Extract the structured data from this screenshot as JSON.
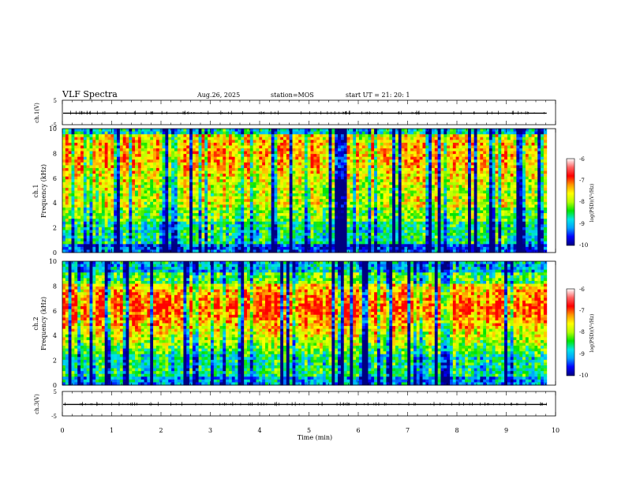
{
  "header": {
    "title": "VLF Spectra",
    "date": "Aug.26, 2025",
    "station": "station=MOS",
    "start_ut": "start  UT  =   21: 20: 1"
  },
  "colors": {
    "spectrum": [
      "#000080",
      "#0000ff",
      "#0096ff",
      "#00e6e6",
      "#00e600",
      "#b4ff00",
      "#ffff00",
      "#ff9600",
      "#ff0000"
    ],
    "colorbar": [
      "#000080",
      "#0000ff",
      "#00a0ff",
      "#00e6e6",
      "#00e600",
      "#b4ff00",
      "#ffff00",
      "#ff9600",
      "#ff0000",
      "#ff6464",
      "#ffffff"
    ],
    "line": "#000000"
  },
  "chart_data": [
    {
      "type": "line",
      "id": "ch1_waveform",
      "ylabel": "ch.1(V)",
      "ylim": [
        -5,
        5
      ],
      "yticks": [
        "5",
        "-5"
      ],
      "xlim": [
        0,
        10
      ],
      "baseline": -0.3
    },
    {
      "type": "heatmap",
      "id": "ch1_spectrogram",
      "ylabel_channel": "ch.1",
      "ylabel": "Frequency (kHz)",
      "ylim": [
        0,
        10
      ],
      "yticks": [
        "0",
        "2",
        "4",
        "6",
        "8",
        "10"
      ],
      "xlim": [
        0,
        10
      ],
      "data_end_min": 9.82,
      "colorbar": {
        "label": "log(PSD)(V²/Hz)",
        "ticks": [
          "-6",
          "-7",
          "-8",
          "-9",
          "-10"
        ],
        "range": [
          -10,
          -6
        ]
      }
    },
    {
      "type": "heatmap",
      "id": "ch2_spectrogram",
      "ylabel_channel": "ch.2",
      "ylabel": "Frequency (kHz)",
      "ylim": [
        0,
        10
      ],
      "yticks": [
        "0",
        "2",
        "4",
        "6",
        "8",
        "10"
      ],
      "xlim": [
        0,
        10
      ],
      "data_end_min": 9.82,
      "colorbar": {
        "label": "log(PSD)(V²/Hz)",
        "ticks": [
          "-6",
          "-7",
          "-8",
          "-9",
          "-10"
        ],
        "range": [
          -10,
          -6
        ]
      }
    },
    {
      "type": "line",
      "id": "ch3_waveform",
      "ylabel": "ch.3(V)",
      "ylim": [
        -5,
        5
      ],
      "yticks": [
        "5",
        "-5"
      ],
      "xlim": [
        0,
        10
      ],
      "baseline": -0.3
    }
  ],
  "xaxis": {
    "label": "Time  (min)",
    "ticks": [
      "0",
      "1",
      "2",
      "3",
      "4",
      "5",
      "6",
      "7",
      "8",
      "9",
      "10"
    ]
  }
}
